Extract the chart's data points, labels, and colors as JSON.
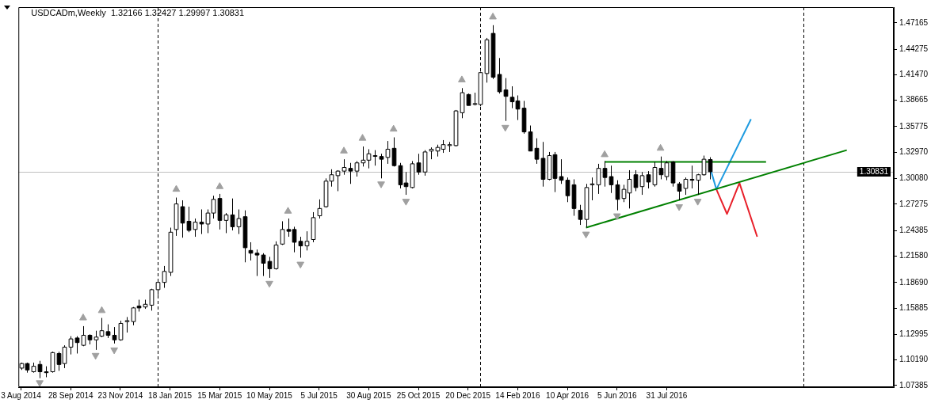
{
  "chart_data": {
    "type": "candlestick",
    "title": "USDCADm,Weekly  1.32166 1.32427 1.29997 1.30831",
    "color": "#000000",
    "colors": [
      "#ffffff",
      "#000000",
      "#ffffff",
      "#000000",
      "#000000",
      "#ffffff",
      "#000000",
      "#ffffff",
      "#ffffff",
      "#000000",
      "#ffffff",
      "#000000",
      "#ffffff",
      "#ffffff",
      "#000000",
      "#000000",
      "#ffffff",
      "#ffffff",
      "#ffffff",
      "#000000",
      "#ffffff",
      "#ffffff",
      "#ffffff",
      "#ffffff",
      "#ffffff",
      "#ffffff",
      "#000000",
      "#000000",
      "#ffffff",
      "#000000",
      "#ffffff",
      "#ffffff",
      "#000000",
      "#ffffff",
      "#000000",
      "#ffffff",
      "#000000",
      "#000000",
      "#000000",
      "#000000",
      "#000000",
      "#ffffff",
      "#ffffff",
      "#000000",
      "#000000",
      "#000000",
      "#ffffff",
      "#ffffff",
      "#ffffff",
      "#ffffff",
      "#ffffff",
      "#ffffff",
      "#ffffff",
      "#000000",
      "#ffffff",
      "#ffffff",
      "#ffffff",
      "#ffffff",
      "#000000",
      "#ffffff",
      "#000000",
      "#000000",
      "#000000",
      "#ffffff",
      "#000000",
      "#ffffff",
      "#ffffff",
      "#ffffff",
      "#ffffff",
      "#ffffff",
      "#ffffff",
      "#ffffff",
      "#000000",
      "#ffffff",
      "#ffffff",
      "#ffffff",
      "#000000",
      "#000000",
      "#000000",
      "#000000",
      "#000000",
      "#000000",
      "#000000",
      "#000000",
      "#000000",
      "#ffffff",
      "#000000",
      "#000000",
      "#000000",
      "#000000",
      "#000000",
      "#ffffff",
      "#ffffff",
      "#ffffff",
      "#000000",
      "#000000",
      "#000000",
      "#ffffff",
      "#ffffff",
      "#000000",
      "#ffffff",
      "#000000",
      "#ffffff",
      "#000000",
      "#ffffff",
      "#000000",
      "#000000",
      "#ffffff",
      "#000000",
      "#ffffff",
      "#ffffff",
      "#000000"
    ],
    "x": [
      "2014-08-03",
      "2014-08-10",
      "2014-08-17",
      "2014-08-24",
      "2014-08-31",
      "2014-09-07",
      "2014-09-14",
      "2014-09-21",
      "2014-09-28",
      "2014-10-05",
      "2014-10-12",
      "2014-10-19",
      "2014-10-26",
      "2014-11-02",
      "2014-11-09",
      "2014-11-16",
      "2014-11-23",
      "2014-11-30",
      "2014-12-07",
      "2014-12-14",
      "2014-12-21",
      "2014-12-28",
      "2015-01-04",
      "2015-01-11",
      "2015-01-18",
      "2015-01-25",
      "2015-02-01",
      "2015-02-08",
      "2015-02-15",
      "2015-02-22",
      "2015-03-01",
      "2015-03-08",
      "2015-03-15",
      "2015-03-22",
      "2015-03-29",
      "2015-04-05",
      "2015-04-12",
      "2015-04-19",
      "2015-04-26",
      "2015-05-03",
      "2015-05-10",
      "2015-05-17",
      "2015-05-24",
      "2015-05-31",
      "2015-06-07",
      "2015-06-14",
      "2015-06-21",
      "2015-06-28",
      "2015-07-05",
      "2015-07-12",
      "2015-07-19",
      "2015-07-26",
      "2015-08-02",
      "2015-08-09",
      "2015-08-16",
      "2015-08-23",
      "2015-08-30",
      "2015-09-06",
      "2015-09-13",
      "2015-09-20",
      "2015-09-27",
      "2015-10-04",
      "2015-10-11",
      "2015-10-18",
      "2015-10-25",
      "2015-11-01",
      "2015-11-08",
      "2015-11-15",
      "2015-11-22",
      "2015-11-29",
      "2015-12-06",
      "2015-12-13",
      "2015-12-20",
      "2015-12-27",
      "2016-01-03",
      "2016-01-10",
      "2016-01-17",
      "2016-01-24",
      "2016-01-31",
      "2016-02-07",
      "2016-02-14",
      "2016-02-21",
      "2016-02-28",
      "2016-03-06",
      "2016-03-13",
      "2016-03-20",
      "2016-03-27",
      "2016-04-03",
      "2016-04-10",
      "2016-04-17",
      "2016-04-24",
      "2016-05-01",
      "2016-05-08",
      "2016-05-15",
      "2016-05-22",
      "2016-05-29",
      "2016-06-05",
      "2016-06-12",
      "2016-06-19",
      "2016-06-26",
      "2016-07-03",
      "2016-07-10",
      "2016-07-17",
      "2016-07-24",
      "2016-07-31",
      "2016-08-07",
      "2016-08-14",
      "2016-08-21",
      "2016-08-28",
      "2016-09-04",
      "2016-09-11",
      "2016-09-18"
    ],
    "ohlc": [
      [
        1.093,
        1.099,
        1.091,
        1.098
      ],
      [
        1.098,
        1.099,
        1.088,
        1.091
      ],
      [
        1.089,
        1.099,
        1.088,
        1.095
      ],
      [
        1.097,
        1.101,
        1.082,
        1.089
      ],
      [
        1.089,
        1.095,
        1.083,
        1.088
      ],
      [
        1.089,
        1.111,
        1.088,
        1.11
      ],
      [
        1.109,
        1.111,
        1.09,
        1.097
      ],
      [
        1.098,
        1.118,
        1.093,
        1.116
      ],
      [
        1.116,
        1.128,
        1.108,
        1.125
      ],
      [
        1.126,
        1.128,
        1.109,
        1.121
      ],
      [
        1.118,
        1.139,
        1.117,
        1.129
      ],
      [
        1.129,
        1.13,
        1.119,
        1.124
      ],
      [
        1.124,
        1.134,
        1.113,
        1.127
      ],
      [
        1.128,
        1.148,
        1.127,
        1.134
      ],
      [
        1.133,
        1.141,
        1.126,
        1.129
      ],
      [
        1.129,
        1.138,
        1.12,
        1.124
      ],
      [
        1.124,
        1.145,
        1.123,
        1.142
      ],
      [
        1.144,
        1.149,
        1.132,
        1.145
      ],
      [
        1.144,
        1.16,
        1.14,
        1.159
      ],
      [
        1.161,
        1.168,
        1.155,
        1.159
      ],
      [
        1.16,
        1.168,
        1.158,
        1.163
      ],
      [
        1.162,
        1.18,
        1.156,
        1.179
      ],
      [
        1.179,
        1.191,
        1.173,
        1.187
      ],
      [
        1.187,
        1.205,
        1.181,
        1.199
      ],
      [
        1.198,
        1.247,
        1.194,
        1.242
      ],
      [
        1.245,
        1.28,
        1.238,
        1.273
      ],
      [
        1.27,
        1.277,
        1.236,
        1.252
      ],
      [
        1.254,
        1.27,
        1.242,
        1.244
      ],
      [
        1.245,
        1.257,
        1.237,
        1.253
      ],
      [
        1.253,
        1.267,
        1.24,
        1.251
      ],
      [
        1.251,
        1.267,
        1.241,
        1.263
      ],
      [
        1.263,
        1.282,
        1.257,
        1.278
      ],
      [
        1.279,
        1.284,
        1.245,
        1.255
      ],
      [
        1.255,
        1.263,
        1.241,
        1.261
      ],
      [
        1.261,
        1.279,
        1.244,
        1.248
      ],
      [
        1.248,
        1.267,
        1.24,
        1.257
      ],
      [
        1.259,
        1.266,
        1.209,
        1.225
      ],
      [
        1.222,
        1.231,
        1.211,
        1.219
      ],
      [
        1.219,
        1.223,
        1.194,
        1.217
      ],
      [
        1.217,
        1.219,
        1.194,
        1.208
      ],
      [
        1.21,
        1.215,
        1.192,
        1.202
      ],
      [
        1.202,
        1.232,
        1.201,
        1.228
      ],
      [
        1.229,
        1.254,
        1.228,
        1.245
      ],
      [
        1.245,
        1.257,
        1.237,
        1.243
      ],
      [
        1.245,
        1.248,
        1.22,
        1.231
      ],
      [
        1.232,
        1.237,
        1.214,
        1.227
      ],
      [
        1.227,
        1.243,
        1.222,
        1.232
      ],
      [
        1.234,
        1.264,
        1.231,
        1.258
      ],
      [
        1.26,
        1.278,
        1.257,
        1.268
      ],
      [
        1.27,
        1.301,
        1.269,
        1.298
      ],
      [
        1.298,
        1.311,
        1.292,
        1.305
      ],
      [
        1.304,
        1.31,
        1.287,
        1.309
      ],
      [
        1.309,
        1.322,
        1.305,
        1.313
      ],
      [
        1.312,
        1.318,
        1.295,
        1.309
      ],
      [
        1.309,
        1.32,
        1.303,
        1.318
      ],
      [
        1.318,
        1.336,
        1.314,
        1.321
      ],
      [
        1.321,
        1.333,
        1.312,
        1.328
      ],
      [
        1.326,
        1.332,
        1.315,
        1.326
      ],
      [
        1.325,
        1.328,
        1.301,
        1.322
      ],
      [
        1.324,
        1.342,
        1.317,
        1.333
      ],
      [
        1.334,
        1.346,
        1.314,
        1.315
      ],
      [
        1.315,
        1.318,
        1.29,
        1.294
      ],
      [
        1.296,
        1.308,
        1.283,
        1.292
      ],
      [
        1.291,
        1.32,
        1.29,
        1.317
      ],
      [
        1.318,
        1.328,
        1.305,
        1.308
      ],
      [
        1.308,
        1.332,
        1.304,
        1.33
      ],
      [
        1.331,
        1.335,
        1.322,
        1.333
      ],
      [
        1.331,
        1.338,
        1.325,
        1.335
      ],
      [
        1.333,
        1.343,
        1.329,
        1.338
      ],
      [
        1.337,
        1.341,
        1.33,
        1.338
      ],
      [
        1.337,
        1.376,
        1.336,
        1.375
      ],
      [
        1.373,
        1.4,
        1.367,
        1.395
      ],
      [
        1.393,
        1.394,
        1.381,
        1.381
      ],
      [
        1.383,
        1.395,
        1.381,
        1.383
      ],
      [
        1.382,
        1.418,
        1.38,
        1.417
      ],
      [
        1.416,
        1.455,
        1.406,
        1.453
      ],
      [
        1.46,
        1.469,
        1.41,
        1.412
      ],
      [
        1.415,
        1.433,
        1.394,
        1.396
      ],
      [
        1.398,
        1.411,
        1.364,
        1.391
      ],
      [
        1.39,
        1.402,
        1.378,
        1.385
      ],
      [
        1.386,
        1.392,
        1.365,
        1.377
      ],
      [
        1.378,
        1.386,
        1.35,
        1.352
      ],
      [
        1.352,
        1.359,
        1.331,
        1.331
      ],
      [
        1.334,
        1.345,
        1.317,
        1.322
      ],
      [
        1.323,
        1.341,
        1.292,
        1.3
      ],
      [
        1.3,
        1.33,
        1.299,
        1.326
      ],
      [
        1.327,
        1.33,
        1.286,
        1.301
      ],
      [
        1.303,
        1.322,
        1.295,
        1.299
      ],
      [
        1.299,
        1.302,
        1.275,
        1.282
      ],
      [
        1.294,
        1.3,
        1.26,
        1.268
      ],
      [
        1.266,
        1.272,
        1.25,
        1.256
      ],
      [
        1.256,
        1.295,
        1.247,
        1.291
      ],
      [
        1.294,
        1.302,
        1.277,
        1.295
      ],
      [
        1.294,
        1.317,
        1.284,
        1.312
      ],
      [
        1.312,
        1.32,
        1.292,
        1.302
      ],
      [
        1.303,
        1.315,
        1.285,
        1.294
      ],
      [
        1.294,
        1.299,
        1.266,
        1.278
      ],
      [
        1.279,
        1.294,
        1.275,
        1.289
      ],
      [
        1.285,
        1.31,
        1.268,
        1.3
      ],
      [
        1.305,
        1.31,
        1.287,
        1.291
      ],
      [
        1.292,
        1.308,
        1.283,
        1.304
      ],
      [
        1.305,
        1.309,
        1.29,
        1.297
      ],
      [
        1.294,
        1.319,
        1.292,
        1.313
      ],
      [
        1.312,
        1.325,
        1.3,
        1.305
      ],
      [
        1.303,
        1.32,
        1.299,
        1.318
      ],
      [
        1.319,
        1.32,
        1.292,
        1.296
      ],
      [
        1.295,
        1.297,
        1.277,
        1.287
      ],
      [
        1.29,
        1.302,
        1.283,
        1.3
      ],
      [
        1.3,
        1.315,
        1.29,
        1.299
      ],
      [
        1.299,
        1.306,
        1.283,
        1.305
      ],
      [
        1.305,
        1.326,
        1.304,
        1.322
      ],
      [
        1.32166,
        1.32427,
        1.29997,
        1.30831
      ]
    ],
    "series": [
      {
        "type": "scatter",
        "marker": "triangle",
        "color": "#a0a0a0",
        "x": [
          "2014-10-12",
          "2014-11-02",
          "2015-01-25",
          "2015-03-15",
          "2015-05-31",
          "2015-08-02",
          "2015-08-23",
          "2015-09-27",
          "2015-12-13",
          "2016-01-17",
          "2016-05-22",
          "2016-07-24"
        ],
        "values": [
          1.148,
          1.156,
          1.289,
          1.292,
          1.265,
          1.331,
          1.345,
          1.355,
          1.409,
          1.478,
          1.327,
          1.334
        ]
      },
      {
        "type": "scatter",
        "marker": "triangle",
        "color": "#a0a0a0",
        "x": [
          "2014-08-24",
          "2014-10-26",
          "2014-11-16",
          "2015-05-10",
          "2015-06-14",
          "2015-09-13",
          "2015-10-11",
          "2016-01-31",
          "2016-05-01",
          "2016-06-05",
          "2016-08-14",
          "2016-09-04"
        ],
        "values": [
          1.077,
          1.107,
          1.113,
          1.186,
          1.207,
          1.295,
          1.276,
          1.357,
          1.24,
          1.26,
          1.27,
          1.276
        ]
      },
      {
        "type": "line",
        "color": "#008000",
        "x": [
          "2016-05-22",
          "2016-11-20"
        ],
        "values": [
          1.319,
          1.319
        ]
      },
      {
        "type": "line",
        "color": "#008000",
        "x": [
          "2016-05-01",
          "2017-02-19"
        ],
        "values": [
          1.247,
          1.332
        ]
      },
      {
        "type": "line",
        "color": "#1e9be0",
        "x": [
          "2016-09-19",
          "2016-09-25",
          "2016-11-03"
        ],
        "values": [
          1.309,
          1.289,
          1.366
        ]
      },
      {
        "type": "line",
        "color": "#e8202a",
        "x": [
          "2016-09-25",
          "2016-10-07",
          "2016-10-21",
          "2016-11-10"
        ],
        "values": [
          1.289,
          1.262,
          1.296,
          1.237
        ]
      }
    ],
    "xlim": [
      "2014-07-31",
      "2017-04-13"
    ],
    "xticks": [
      {
        "value": "2014-08-03",
        "label": "3 Aug 2014"
      },
      {
        "value": "2014-09-28",
        "label": "28 Sep 2014"
      },
      {
        "value": "2014-11-23",
        "label": "23 Nov 2014"
      },
      {
        "value": "2015-01-18",
        "label": "18 Jan 2015"
      },
      {
        "value": "2015-03-15",
        "label": "15 Mar 2015"
      },
      {
        "value": "2015-05-10",
        "label": "10 May 2015"
      },
      {
        "value": "2015-07-05",
        "label": "5 Jul 2015"
      },
      {
        "value": "2015-08-30",
        "label": "30 Aug 2015"
      },
      {
        "value": "2015-10-25",
        "label": "25 Oct 2015"
      },
      {
        "value": "2015-12-20",
        "label": "20 Dec 2015"
      },
      {
        "value": "2016-02-14",
        "label": "14 Feb 2016"
      },
      {
        "value": "2016-04-10",
        "label": "10 Apr 2016"
      },
      {
        "value": "2016-06-05",
        "label": "5 Jun 2016"
      },
      {
        "value": "2016-07-31",
        "label": "31 Jul 2016"
      }
    ],
    "ylim": [
      1.0721,
      1.4888
    ],
    "yticks": [
      1.07385,
      {
        "value": 1.1019,
        "label": "1.10190"
      },
      1.12995,
      1.15885,
      {
        "value": 1.1869,
        "label": "1.18690"
      },
      {
        "value": 1.2158,
        "label": "1.21580"
      },
      1.24385,
      1.27275,
      {
        "value": 1.3008,
        "label": "1.30080"
      },
      {
        "value": 1.3297,
        "label": "1.32970"
      },
      1.35775,
      1.38665,
      {
        "value": 1.4147,
        "label": "1.41470"
      },
      1.44275,
      1.47165
    ],
    "ref_lines": [
      {
        "axis": "y",
        "value": 1.30831,
        "label": "1.30831",
        "color": "#c0c0c0"
      },
      {
        "axis": "x",
        "value": "2015-01-04",
        "line_style": "dashed",
        "color": "#000000"
      },
      {
        "axis": "x",
        "value": "2016-01-03",
        "line_style": "dashed",
        "color": "#000000"
      },
      {
        "axis": "x",
        "value": "2017-01-01",
        "line_style": "dashed",
        "color": "#000000"
      }
    ]
  }
}
